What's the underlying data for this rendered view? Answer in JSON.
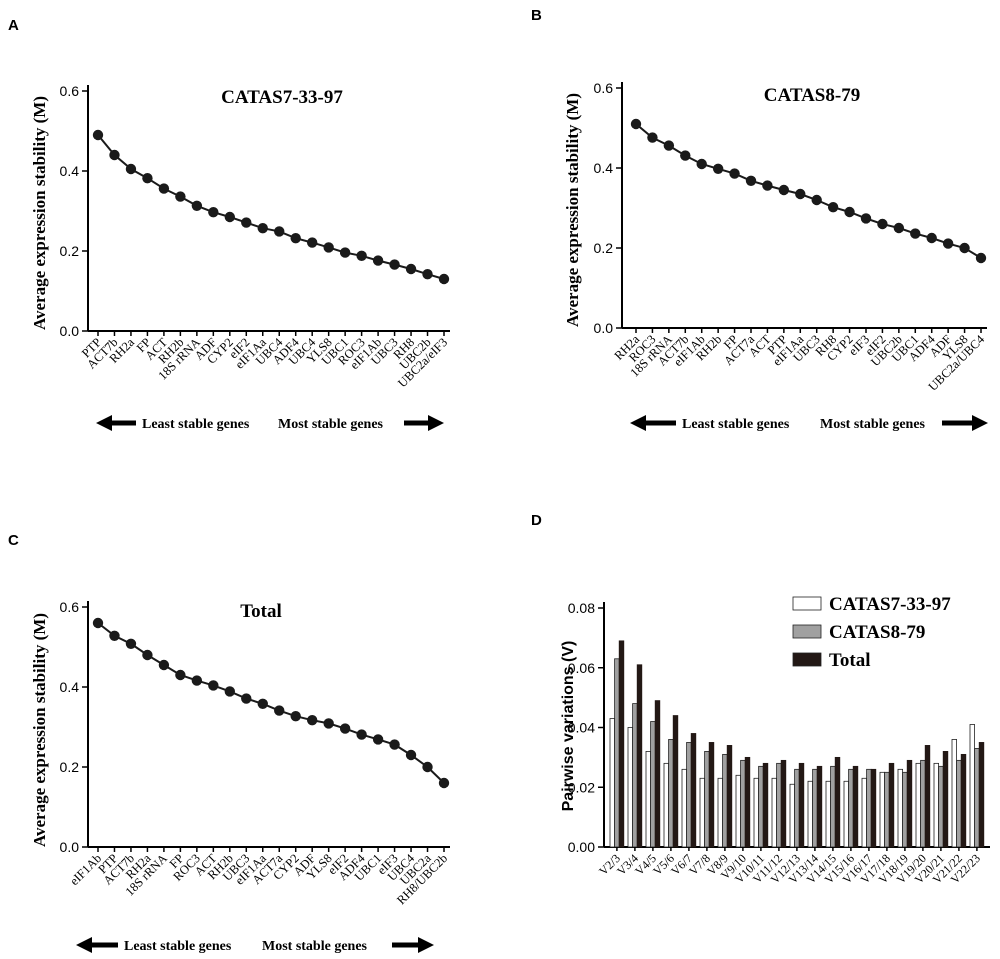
{
  "panels": [
    {
      "letter": "A"
    },
    {
      "letter": "B"
    },
    {
      "letter": "C"
    },
    {
      "letter": "D"
    }
  ],
  "chart_data": [
    {
      "type": "line",
      "title": "CATAS7-33-97",
      "ylabel": "Average expression stability (M)",
      "ylim": [
        0,
        0.6
      ],
      "yticks": [
        "0.0",
        "0.2",
        "0.4",
        "0.6"
      ],
      "categories": [
        "PTP",
        "ACT7b",
        "RH2a",
        "FP",
        "ACT",
        "RH2b",
        "18S rRNA",
        "ADF",
        "CYP2",
        "eIF2",
        "eIF1Aa",
        "UBC4",
        "ADF4",
        "UBC4",
        "YLS8",
        "UBC1",
        "ROC3",
        "eIF1Ab",
        "UBC3",
        "RH8",
        "UBC2b",
        "UBC2a/eIF3"
      ],
      "values": [
        0.49,
        0.44,
        0.405,
        0.382,
        0.356,
        0.336,
        0.313,
        0.297,
        0.285,
        0.271,
        0.257,
        0.249,
        0.232,
        0.221,
        0.209,
        0.196,
        0.188,
        0.176,
        0.166,
        0.155,
        0.142,
        0.13
      ],
      "legend_left": "Least stable genes",
      "legend_right": "Most stable genes"
    },
    {
      "type": "line",
      "title": "CATAS8-79",
      "ylabel": "Average expression stability (M)",
      "ylim": [
        0,
        0.6
      ],
      "yticks": [
        "0.0",
        "0.2",
        "0.4",
        "0.6"
      ],
      "categories": [
        "RH2a",
        "ROC3",
        "18S rRNA",
        "ACT7b",
        "eIF1Ab",
        "RH2b",
        "FP",
        "ACT7a",
        "ACT",
        "PTP",
        "eIF1Aa",
        "UBC3",
        "RH8",
        "CYP2",
        "eIF3",
        "eIF2",
        "UBC2b",
        "UBC1",
        "ADF4",
        "ADF",
        "YLS8",
        "UBC2a/UBC4"
      ],
      "values": [
        0.51,
        0.476,
        0.456,
        0.431,
        0.41,
        0.398,
        0.386,
        0.368,
        0.356,
        0.345,
        0.335,
        0.32,
        0.302,
        0.29,
        0.274,
        0.26,
        0.25,
        0.236,
        0.225,
        0.211,
        0.2,
        0.175
      ],
      "legend_left": "Least stable genes",
      "legend_right": "Most stable genes"
    },
    {
      "type": "line",
      "title": "Total",
      "ylabel": "Average expression stability (M)",
      "ylim": [
        0,
        0.6
      ],
      "yticks": [
        "0.0",
        "0.2",
        "0.4",
        "0.6"
      ],
      "categories": [
        "eIF1Ab",
        "PTP",
        "ACT7b",
        "RH2a",
        "18S rRNA",
        "FP",
        "ROC3",
        "ACT",
        "RH2b",
        "UBC3",
        "eIF1Aa",
        "ACT7a",
        "CYP2",
        "ADF",
        "YLS8",
        "eIF2",
        "ADF4",
        "UBC1",
        "eIF3",
        "UBC4",
        "UBC2a",
        "RH8/UBC2b"
      ],
      "values": [
        0.56,
        0.528,
        0.508,
        0.48,
        0.455,
        0.43,
        0.416,
        0.404,
        0.389,
        0.371,
        0.358,
        0.341,
        0.327,
        0.317,
        0.309,
        0.296,
        0.281,
        0.269,
        0.256,
        0.23,
        0.2,
        0.16
      ],
      "legend_left": "Least stable genes",
      "legend_right": "Most stable genes"
    },
    {
      "type": "bar",
      "title": "",
      "ylabel": "Pairwise variations (V)",
      "ylim": [
        0,
        0.08
      ],
      "yticks": [
        "0.00",
        "0.02",
        "0.04",
        "0.06",
        "0.08"
      ],
      "categories": [
        "V2/3",
        "V3/4",
        "V4/5",
        "V5/6",
        "V6/7",
        "V7/8",
        "V8/9",
        "V9/10",
        "V10/11",
        "V11/12",
        "V12/13",
        "V13/14",
        "V14/15",
        "V15/16",
        "V16/17",
        "V17/18",
        "V18/19",
        "V19/20",
        "V20/21",
        "V21/22",
        "V22/23"
      ],
      "series": [
        {
          "name": "CATAS7-33-97",
          "color": "#ffffff",
          "values": [
            0.043,
            0.04,
            0.032,
            0.028,
            0.026,
            0.023,
            0.023,
            0.024,
            0.023,
            0.023,
            0.021,
            0.022,
            0.022,
            0.022,
            0.023,
            0.025,
            0.026,
            0.028,
            0.028,
            0.036,
            0.041
          ]
        },
        {
          "name": "CATAS8-79",
          "color": "#a0a0a0",
          "values": [
            0.063,
            0.048,
            0.042,
            0.036,
            0.035,
            0.032,
            0.031,
            0.029,
            0.027,
            0.028,
            0.026,
            0.026,
            0.027,
            0.026,
            0.026,
            0.025,
            0.025,
            0.029,
            0.027,
            0.029,
            0.033
          ]
        },
        {
          "name": "Total",
          "color": "#231815",
          "values": [
            0.069,
            0.061,
            0.049,
            0.044,
            0.038,
            0.035,
            0.034,
            0.03,
            0.028,
            0.029,
            0.028,
            0.027,
            0.03,
            0.027,
            0.026,
            0.028,
            0.029,
            0.034,
            0.032,
            0.031,
            0.035
          ]
        }
      ]
    }
  ]
}
